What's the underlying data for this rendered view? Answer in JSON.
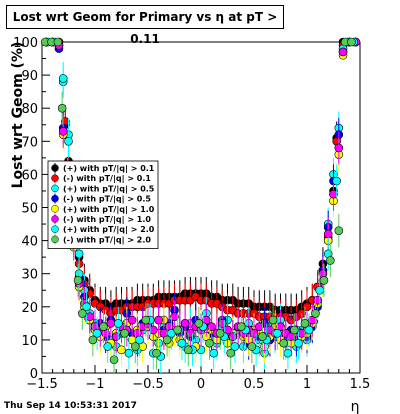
{
  "title": "Lost wrt Geom for Primary vs   η at pT > 0.11",
  "footer": "Thu Sep 14 10:53:31 2017",
  "chart_data": {
    "type": "scatter",
    "xlabel": "η",
    "ylabel": "Lost wrt Geom (%)",
    "xlim": [
      -1.5,
      1.5
    ],
    "ylim": [
      0,
      100
    ],
    "xticks": [
      "−1.5",
      "−1",
      "−0.5",
      "0",
      "0.5",
      "1",
      "1.5"
    ],
    "yticks": [
      "0",
      "10",
      "20",
      "30",
      "40",
      "50",
      "60",
      "70",
      "80",
      "90",
      "100"
    ],
    "legend_position": "left-middle",
    "series": [
      {
        "name": "(+) with pT/|q| > 0.1",
        "color": "#000000",
        "x": [
          -1.46,
          -1.4,
          -1.34,
          -1.28,
          -1.25,
          -1.22,
          -1.15,
          -1.1,
          -1.05,
          -1.0,
          -0.95,
          -0.9,
          -0.85,
          -0.8,
          -0.75,
          -0.7,
          -0.65,
          -0.6,
          -0.55,
          -0.5,
          -0.45,
          -0.4,
          -0.35,
          -0.3,
          -0.25,
          -0.2,
          -0.15,
          -0.1,
          -0.05,
          0.0,
          0.05,
          0.1,
          0.15,
          0.2,
          0.25,
          0.3,
          0.35,
          0.4,
          0.45,
          0.5,
          0.55,
          0.6,
          0.65,
          0.7,
          0.75,
          0.8,
          0.85,
          0.9,
          0.95,
          1.0,
          1.05,
          1.1,
          1.15,
          1.2,
          1.25,
          1.28,
          1.34,
          1.4,
          1.46
        ],
        "y": [
          100,
          100,
          100,
          75,
          64,
          50,
          35,
          28,
          25,
          22,
          21,
          21,
          20,
          21,
          21,
          21,
          21,
          22,
          22,
          22,
          22,
          23,
          23,
          23,
          23,
          23,
          24,
          24,
          24,
          24,
          24,
          23,
          23,
          22,
          22,
          22,
          21,
          21,
          21,
          20,
          20,
          20,
          20,
          19,
          19,
          19,
          19,
          19,
          20,
          21,
          22,
          26,
          33,
          40,
          55,
          71,
          100,
          100,
          100
        ]
      },
      {
        "name": "(-) with pT/|q| > 0.1",
        "color": "#ff0000",
        "x": [
          -1.46,
          -1.4,
          -1.34,
          -1.28,
          -1.25,
          -1.22,
          -1.15,
          -1.1,
          -1.05,
          -1.0,
          -0.95,
          -0.9,
          -0.85,
          -0.8,
          -0.75,
          -0.7,
          -0.65,
          -0.6,
          -0.55,
          -0.5,
          -0.45,
          -0.4,
          -0.35,
          -0.3,
          -0.25,
          -0.2,
          -0.15,
          -0.1,
          -0.05,
          0.0,
          0.05,
          0.1,
          0.15,
          0.2,
          0.25,
          0.3,
          0.35,
          0.4,
          0.45,
          0.5,
          0.55,
          0.6,
          0.65,
          0.7,
          0.75,
          0.8,
          0.85,
          0.9,
          0.95,
          1.0,
          1.05,
          1.1,
          1.15,
          1.2,
          1.25,
          1.28,
          1.34,
          1.4,
          1.46
        ],
        "y": [
          100,
          100,
          100,
          76,
          62,
          48,
          33,
          27,
          24,
          21,
          20,
          19,
          18,
          19,
          19,
          20,
          20,
          20,
          20,
          21,
          21,
          21,
          21,
          21,
          22,
          22,
          22,
          22,
          23,
          22,
          22,
          21,
          21,
          20,
          19,
          19,
          18,
          18,
          18,
          18,
          17,
          17,
          17,
          17,
          17,
          17,
          16,
          17,
          18,
          20,
          22,
          26,
          31,
          41,
          54,
          70,
          99,
          100,
          100
        ]
      },
      {
        "name": "(+) with pT/|q| > 0.5",
        "color": "#00ffff",
        "x": [
          -1.46,
          -1.4,
          -1.34,
          -1.3,
          -1.25,
          -1.2,
          -1.15,
          -1.1,
          -1.05,
          -1.0,
          -0.95,
          -0.9,
          -0.85,
          -0.8,
          -0.75,
          -0.7,
          -0.65,
          -0.6,
          -0.55,
          -0.5,
          -0.45,
          -0.4,
          -0.35,
          -0.3,
          -0.25,
          -0.2,
          -0.15,
          -0.1,
          -0.05,
          0.0,
          0.05,
          0.1,
          0.15,
          0.2,
          0.25,
          0.3,
          0.35,
          0.4,
          0.45,
          0.5,
          0.55,
          0.6,
          0.65,
          0.7,
          0.75,
          0.8,
          0.85,
          0.9,
          0.95,
          1.0,
          1.05,
          1.1,
          1.15,
          1.2,
          1.25,
          1.3,
          1.34,
          1.4,
          1.46
        ],
        "y": [
          100,
          100,
          99,
          88,
          72,
          52,
          36,
          25,
          18,
          15,
          12,
          14,
          10,
          8,
          12,
          15,
          10,
          7,
          13,
          16,
          6,
          9,
          14,
          11,
          17,
          13,
          8,
          15,
          10,
          7,
          18,
          12,
          9,
          14,
          16,
          11,
          13,
          8,
          15,
          12,
          10,
          6,
          14,
          11,
          16,
          9,
          12,
          8,
          13,
          10,
          15,
          22,
          30,
          45,
          60,
          74,
          98,
          100,
          100
        ]
      },
      {
        "name": "(-) with pT/|q| > 0.5",
        "color": "#0000ff",
        "x": [
          -1.46,
          -1.4,
          -1.34,
          -1.3,
          -1.25,
          -1.2,
          -1.15,
          -1.1,
          -1.05,
          -1.0,
          -0.95,
          -0.9,
          -0.85,
          -0.8,
          -0.75,
          -0.7,
          -0.65,
          -0.6,
          -0.55,
          -0.5,
          -0.45,
          -0.4,
          -0.35,
          -0.3,
          -0.25,
          -0.2,
          -0.15,
          -0.1,
          -0.05,
          0.0,
          0.05,
          0.1,
          0.15,
          0.2,
          0.25,
          0.3,
          0.35,
          0.4,
          0.45,
          0.5,
          0.55,
          0.6,
          0.65,
          0.7,
          0.75,
          0.8,
          0.85,
          0.9,
          0.95,
          1.0,
          1.05,
          1.1,
          1.15,
          1.2,
          1.25,
          1.3,
          1.34,
          1.4,
          1.46
        ],
        "y": [
          100,
          100,
          98,
          74,
          58,
          40,
          29,
          23,
          16,
          13,
          15,
          11,
          16,
          12,
          14,
          18,
          12,
          10,
          15,
          14,
          11,
          16,
          13,
          15,
          19,
          12,
          14,
          11,
          16,
          13,
          15,
          12,
          10,
          16,
          13,
          11,
          14,
          12,
          9,
          13,
          11,
          15,
          10,
          12,
          14,
          11,
          13,
          10,
          12,
          11,
          14,
          20,
          31,
          44,
          58,
          72,
          97,
          100,
          100
        ]
      },
      {
        "name": "(+) with pT/|q| > 1.0",
        "color": "#ffff00",
        "x": [
          -1.46,
          -1.4,
          -1.34,
          -1.3,
          -1.25,
          -1.2,
          -1.15,
          -1.1,
          -1.05,
          -1.0,
          -0.95,
          -0.9,
          -0.85,
          -0.8,
          -0.75,
          -0.7,
          -0.65,
          -0.6,
          -0.55,
          -0.5,
          -0.45,
          -0.4,
          -0.35,
          -0.3,
          -0.25,
          -0.2,
          -0.15,
          -0.1,
          -0.05,
          0.0,
          0.05,
          0.1,
          0.15,
          0.2,
          0.25,
          0.3,
          0.35,
          0.4,
          0.45,
          0.5,
          0.55,
          0.6,
          0.65,
          0.7,
          0.75,
          0.8,
          0.85,
          0.9,
          0.95,
          1.0,
          1.05,
          1.1,
          1.15,
          1.2,
          1.25,
          1.3,
          1.34,
          1.4,
          1.46
        ],
        "y": [
          100,
          100,
          99,
          72,
          55,
          38,
          26,
          20,
          16,
          13,
          11,
          14,
          9,
          12,
          7,
          15,
          10,
          13,
          8,
          14,
          11,
          12,
          16,
          9,
          13,
          10,
          15,
          12,
          8,
          14,
          11,
          13,
          10,
          15,
          9,
          12,
          14,
          11,
          10,
          13,
          12,
          8,
          11,
          14,
          10,
          12,
          9,
          13,
          11,
          12,
          15,
          21,
          28,
          40,
          52,
          66,
          96,
          100,
          100
        ]
      },
      {
        "name": "(-) with pT/|q| > 1.0",
        "color": "#ff00ff",
        "x": [
          -1.46,
          -1.4,
          -1.34,
          -1.3,
          -1.25,
          -1.2,
          -1.15,
          -1.1,
          -1.05,
          -1.0,
          -0.95,
          -0.9,
          -0.85,
          -0.8,
          -0.75,
          -0.7,
          -0.65,
          -0.6,
          -0.55,
          -0.5,
          -0.45,
          -0.4,
          -0.35,
          -0.3,
          -0.25,
          -0.2,
          -0.15,
          -0.1,
          -0.05,
          0.0,
          0.05,
          0.1,
          0.15,
          0.2,
          0.25,
          0.3,
          0.35,
          0.4,
          0.45,
          0.5,
          0.55,
          0.6,
          0.65,
          0.7,
          0.75,
          0.8,
          0.85,
          0.9,
          0.95,
          1.0,
          1.05,
          1.1,
          1.15,
          1.2,
          1.25,
          1.3,
          1.34,
          1.4,
          1.46
        ],
        "y": [
          100,
          100,
          99,
          73,
          56,
          39,
          27,
          21,
          17,
          14,
          13,
          12,
          15,
          11,
          14,
          13,
          16,
          12,
          14,
          15,
          13,
          16,
          12,
          14,
          17,
          13,
          15,
          12,
          14,
          13,
          16,
          14,
          12,
          15,
          13,
          11,
          14,
          12,
          13,
          12,
          14,
          11,
          13,
          12,
          14,
          12,
          11,
          13,
          12,
          14,
          16,
          22,
          30,
          42,
          54,
          68,
          97,
          100,
          100
        ]
      },
      {
        "name": "(+) with pT/|q| > 2.0",
        "color": "#00ffff",
        "x": [
          -1.44,
          -1.38,
          -1.3,
          -1.25,
          -1.2,
          -1.15,
          -1.08,
          -0.98,
          -0.88,
          -0.78,
          -0.68,
          -0.58,
          -0.48,
          -0.38,
          -0.28,
          -0.18,
          -0.08,
          0.02,
          0.12,
          0.22,
          0.32,
          0.42,
          0.52,
          0.62,
          0.72,
          0.82,
          0.92,
          1.02,
          1.12,
          1.2,
          1.28,
          1.38,
          1.44
        ],
        "y": [
          100,
          100,
          89,
          70,
          48,
          30,
          20,
          12,
          8,
          15,
          6,
          10,
          16,
          5,
          12,
          9,
          7,
          14,
          6,
          11,
          8,
          13,
          7,
          10,
          12,
          6,
          9,
          13,
          25,
          36,
          58,
          100,
          100
        ]
      },
      {
        "name": "(-) with pT/|q| > 2.0",
        "color": "#55cc55",
        "x": [
          -1.47,
          -1.41,
          -1.35,
          -1.31,
          -1.26,
          -1.21,
          -1.16,
          -1.12,
          -1.02,
          -0.92,
          -0.82,
          -0.72,
          -0.62,
          -0.52,
          -0.42,
          -0.32,
          -0.22,
          -0.12,
          -0.02,
          0.08,
          0.18,
          0.28,
          0.38,
          0.48,
          0.58,
          0.68,
          0.78,
          0.88,
          0.98,
          1.08,
          1.16,
          1.22,
          1.3,
          1.36,
          1.42
        ],
        "y": [
          100,
          100,
          100,
          80,
          60,
          42,
          28,
          18,
          10,
          14,
          4,
          12,
          8,
          16,
          6,
          10,
          13,
          7,
          15,
          9,
          12,
          6,
          14,
          8,
          11,
          16,
          9,
          13,
          15,
          18,
          28,
          34,
          43,
          100,
          100
        ]
      }
    ]
  }
}
